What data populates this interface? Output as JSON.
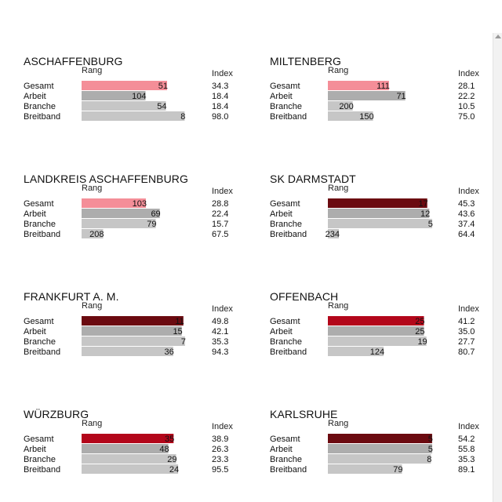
{
  "chart_data": {
    "type": "bar",
    "rank_header": "Rang",
    "index_header": "Index",
    "categories": [
      "Gesamt",
      "Arbeit",
      "Branche",
      "Breitband"
    ],
    "colors": {
      "pink": "#f48e98",
      "red": "#b3061a",
      "darkred": "#6b0a10",
      "gray_dark": "#adadad",
      "gray_light": "#c6c6c6"
    },
    "panels": [
      {
        "title": "ASCHAFFENBURG",
        "gesamt_color": "pink",
        "rows": [
          {
            "rank": 51,
            "index": "34.3"
          },
          {
            "rank": 104,
            "index": "18.4"
          },
          {
            "rank": 54,
            "index": "18.4"
          },
          {
            "rank": 8,
            "index": "98.0"
          }
        ]
      },
      {
        "title": "MILTENBERG",
        "gesamt_color": "pink",
        "rows": [
          {
            "rank": 111,
            "index": "28.1"
          },
          {
            "rank": 71,
            "index": "22.2"
          },
          {
            "rank": 200,
            "index": "10.5"
          },
          {
            "rank": 150,
            "index": "75.0"
          }
        ]
      },
      {
        "title": "LANDKREIS ASCHAFFENBURG",
        "gesamt_color": "pink",
        "rows": [
          {
            "rank": 103,
            "index": "28.8"
          },
          {
            "rank": 69,
            "index": "22.4"
          },
          {
            "rank": 79,
            "index": "15.7"
          },
          {
            "rank": 208,
            "index": "67.5"
          }
        ]
      },
      {
        "title": "SK DARMSTADT",
        "gesamt_color": "darkred",
        "rows": [
          {
            "rank": 17,
            "index": "45.3"
          },
          {
            "rank": 12,
            "index": "43.6"
          },
          {
            "rank": 5,
            "index": "37.4"
          },
          {
            "rank": 234,
            "index": "64.4"
          }
        ]
      },
      {
        "title": "FRANKFURT A. M.",
        "gesamt_color": "darkred",
        "rows": [
          {
            "rank": 11,
            "index": "49.8"
          },
          {
            "rank": 15,
            "index": "42.1"
          },
          {
            "rank": 7,
            "index": "35.3"
          },
          {
            "rank": 36,
            "index": "94.3"
          }
        ]
      },
      {
        "title": "OFFENBACH",
        "gesamt_color": "red",
        "rows": [
          {
            "rank": 25,
            "index": "41.2"
          },
          {
            "rank": 25,
            "index": "35.0"
          },
          {
            "rank": 19,
            "index": "27.7"
          },
          {
            "rank": 124,
            "index": "80.7"
          }
        ]
      },
      {
        "title": "WÜRZBURG",
        "gesamt_color": "red",
        "rows": [
          {
            "rank": 35,
            "index": "38.9"
          },
          {
            "rank": 48,
            "index": "26.3"
          },
          {
            "rank": 29,
            "index": "23.3"
          },
          {
            "rank": 24,
            "index": "95.5"
          }
        ]
      },
      {
        "title": "KARLSRUHE",
        "gesamt_color": "darkred",
        "rows": [
          {
            "rank": 5,
            "index": "54.2"
          },
          {
            "rank": 5,
            "index": "55.8"
          },
          {
            "rank": 8,
            "index": "35.3"
          },
          {
            "rank": 79,
            "index": "89.1"
          }
        ]
      }
    ]
  }
}
